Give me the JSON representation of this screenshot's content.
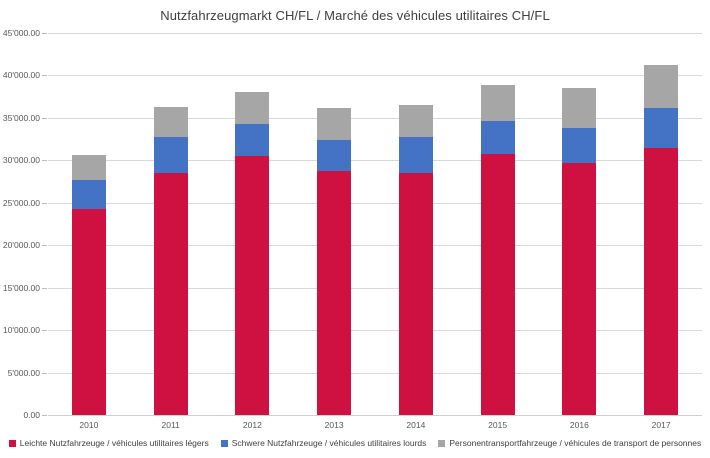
{
  "title": "Nutzfahrzeugmarkt CH/FL / Marché des véhicules utilitaires CH/FL",
  "chart_data": {
    "type": "bar",
    "stacked": true,
    "title": "Nutzfahrzeugmarkt CH/FL / Marché des véhicules utilitaires CH/FL",
    "categories": [
      "2010",
      "2011",
      "2012",
      "2013",
      "2014",
      "2015",
      "2016",
      "2017"
    ],
    "series": [
      {
        "name": "Leichte Nutzfahrzeuge / véhicules utilitaires légers",
        "color": "#ce1140",
        "values": [
          24300,
          28500,
          30500,
          28800,
          28500,
          30800,
          29700,
          31500
        ]
      },
      {
        "name": "Schwere Nutzfahrzeuge / véhicules utilitaires lourds",
        "color": "#4472c4",
        "values": [
          3400,
          4300,
          3800,
          3600,
          4300,
          3800,
          4100,
          4700
        ]
      },
      {
        "name": "Personentransportfahrzeuge / véhicules de transport de personnes",
        "color": "#a6a6a6",
        "values": [
          2900,
          3500,
          3800,
          3800,
          3700,
          4300,
          4700,
          5000
        ]
      }
    ],
    "totals": [
      30600,
      36300,
      38100,
      36200,
      36500,
      38900,
      38500,
      41200
    ],
    "xlabel": "",
    "ylabel": "",
    "ylim": [
      0,
      45000
    ],
    "ytick_step": 5000,
    "ytick_labels_top_to_bottom": [
      "45'000.00",
      "40'000.00",
      "35'000.00",
      "30'000.00",
      "25'000.00",
      "20'000.00",
      "15'000.00",
      "10'000.00",
      "5'000.00",
      "0.00"
    ],
    "grid": true,
    "legend_position": "bottom"
  },
  "colors": {
    "background": "#ffffff",
    "gridline": "#d9d9d9",
    "axis_text": "#595959",
    "title_text": "#3f3f3f",
    "series_red": "#ce1140",
    "series_blue": "#4472c4",
    "series_gray": "#a6a6a6"
  }
}
